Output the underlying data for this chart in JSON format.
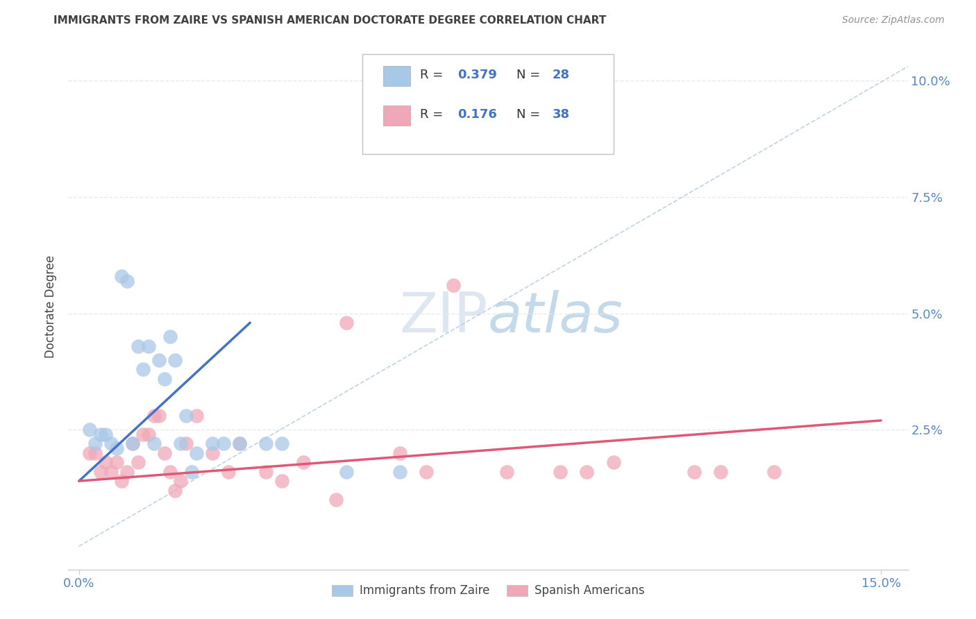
{
  "title": "IMMIGRANTS FROM ZAIRE VS SPANISH AMERICAN DOCTORATE DEGREE CORRELATION CHART",
  "source": "Source: ZipAtlas.com",
  "ylabel": "Doctorate Degree",
  "ytick_labels": [
    "10.0%",
    "7.5%",
    "5.0%",
    "2.5%"
  ],
  "ytick_values": [
    0.1,
    0.075,
    0.05,
    0.025
  ],
  "ylim": [
    -0.005,
    0.108
  ],
  "xlim": [
    -0.002,
    0.155
  ],
  "xtick_left_label": "0.0%",
  "xtick_right_label": "15.0%",
  "blue_color": "#a8c8e8",
  "pink_color": "#f0a8b8",
  "blue_line_color": "#4472c4",
  "pink_line_color": "#e05878",
  "dashed_line_color": "#b0c8e0",
  "title_color": "#404040",
  "source_color": "#909090",
  "axis_label_color": "#5588cc",
  "grid_color": "#e8e8e8",
  "watermark_text": "ZIPatlas",
  "legend_R1": "R = ",
  "legend_V1": "0.379",
  "legend_N1": "N = ",
  "legend_NV1": "28",
  "legend_R2": "R = ",
  "legend_V2": "0.176",
  "legend_N2": "N = ",
  "legend_NV2": "38",
  "blue_scatter_x": [
    0.002,
    0.003,
    0.004,
    0.005,
    0.006,
    0.007,
    0.008,
    0.009,
    0.01,
    0.011,
    0.012,
    0.013,
    0.014,
    0.015,
    0.016,
    0.017,
    0.018,
    0.019,
    0.02,
    0.021,
    0.022,
    0.025,
    0.027,
    0.03,
    0.035,
    0.038,
    0.05,
    0.06
  ],
  "blue_scatter_y": [
    0.025,
    0.022,
    0.024,
    0.024,
    0.022,
    0.021,
    0.058,
    0.057,
    0.022,
    0.043,
    0.038,
    0.043,
    0.022,
    0.04,
    0.036,
    0.045,
    0.04,
    0.022,
    0.028,
    0.016,
    0.02,
    0.022,
    0.022,
    0.022,
    0.022,
    0.022,
    0.016,
    0.016
  ],
  "pink_scatter_x": [
    0.002,
    0.003,
    0.004,
    0.005,
    0.006,
    0.007,
    0.008,
    0.009,
    0.01,
    0.011,
    0.012,
    0.013,
    0.014,
    0.015,
    0.016,
    0.017,
    0.018,
    0.019,
    0.02,
    0.022,
    0.025,
    0.028,
    0.03,
    0.035,
    0.038,
    0.042,
    0.048,
    0.05,
    0.06,
    0.065,
    0.07,
    0.08,
    0.09,
    0.095,
    0.1,
    0.115,
    0.12,
    0.13
  ],
  "pink_scatter_y": [
    0.02,
    0.02,
    0.016,
    0.018,
    0.016,
    0.018,
    0.014,
    0.016,
    0.022,
    0.018,
    0.024,
    0.024,
    0.028,
    0.028,
    0.02,
    0.016,
    0.012,
    0.014,
    0.022,
    0.028,
    0.02,
    0.016,
    0.022,
    0.016,
    0.014,
    0.018,
    0.01,
    0.048,
    0.02,
    0.016,
    0.056,
    0.016,
    0.016,
    0.016,
    0.018,
    0.016,
    0.016,
    0.016
  ],
  "blue_line_x": [
    0.0,
    0.032
  ],
  "blue_line_y": [
    0.014,
    0.048
  ],
  "pink_line_x": [
    0.0,
    0.15
  ],
  "pink_line_y": [
    0.014,
    0.027
  ],
  "dashed_line_x": [
    0.0,
    0.155
  ],
  "dashed_line_y": [
    0.0,
    0.103
  ]
}
